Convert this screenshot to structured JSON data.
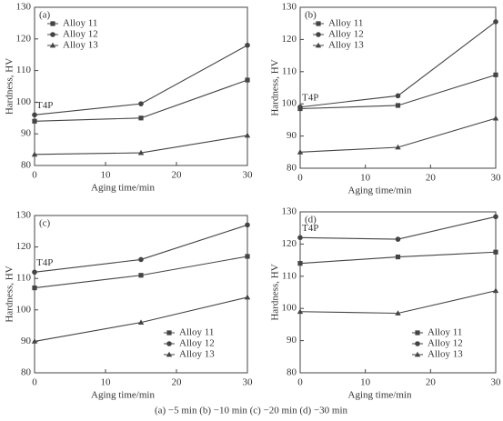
{
  "chart_data": [
    {
      "type": "line",
      "title": "(a)",
      "x_label": "Aging time/min",
      "y_label": "Hardness, HV",
      "annotation": "T4P",
      "x": [
        0,
        15,
        30
      ],
      "xlim": [
        0,
        30
      ],
      "xticks": [
        0,
        10,
        20,
        30
      ],
      "ylim": [
        80,
        130
      ],
      "yticks": [
        80,
        90,
        100,
        110,
        120,
        130
      ],
      "legend": "upper left",
      "series": [
        {
          "name": "Alloy 11",
          "color": "#444",
          "marker": "square",
          "values": [
            94,
            95,
            107
          ]
        },
        {
          "name": "Alloy 12",
          "color": "#444",
          "marker": "circle",
          "values": [
            96,
            99.5,
            118
          ]
        },
        {
          "name": "Alloy 13",
          "color": "#444",
          "marker": "triangle",
          "values": [
            83.5,
            84,
            89.5
          ]
        }
      ]
    },
    {
      "type": "line",
      "title": "(b)",
      "x_label": "Aging time/min",
      "y_label": "Hardness, HV",
      "annotation": "T4P",
      "x": [
        0,
        15,
        30
      ],
      "xlim": [
        0,
        30
      ],
      "xticks": [
        0,
        10,
        20,
        30
      ],
      "ylim": [
        80,
        130
      ],
      "yticks": [
        80,
        90,
        100,
        110,
        120,
        130
      ],
      "legend": "upper left",
      "series": [
        {
          "name": "Alloy 11",
          "color": "#444",
          "marker": "square",
          "values": [
            98.5,
            99.5,
            109
          ]
        },
        {
          "name": "Alloy 12",
          "color": "#444",
          "marker": "circle",
          "values": [
            99,
            102.5,
            125.5
          ]
        },
        {
          "name": "Alloy 13",
          "color": "#444",
          "marker": "triangle",
          "values": [
            85,
            86.5,
            95.5
          ]
        }
      ]
    },
    {
      "type": "line",
      "title": "(c)",
      "x_label": "Aging time/min",
      "y_label": "Hardness, HV",
      "annotation": "T4P",
      "x": [
        0,
        15,
        30
      ],
      "xlim": [
        0,
        30
      ],
      "xticks": [
        0,
        10,
        20,
        30
      ],
      "ylim": [
        80,
        130
      ],
      "yticks": [
        80,
        90,
        100,
        110,
        120,
        130
      ],
      "legend": "lower right",
      "series": [
        {
          "name": "Alloy 11",
          "color": "#444",
          "marker": "square",
          "values": [
            107,
            111,
            117
          ]
        },
        {
          "name": "Alloy 12",
          "color": "#444",
          "marker": "circle",
          "values": [
            112,
            116,
            127
          ]
        },
        {
          "name": "Alloy 13",
          "color": "#444",
          "marker": "triangle",
          "values": [
            90,
            96,
            104
          ]
        }
      ]
    },
    {
      "type": "line",
      "title": "(d)",
      "x_label": "Aging time/min",
      "y_label": "Hardness, HV",
      "annotation": "T4P",
      "x": [
        0,
        15,
        30
      ],
      "xlim": [
        0,
        30
      ],
      "xticks": [
        0,
        10,
        20,
        30
      ],
      "ylim": [
        80,
        130
      ],
      "yticks": [
        80,
        90,
        100,
        110,
        120,
        130
      ],
      "legend": "lower right",
      "series": [
        {
          "name": "Alloy 11",
          "color": "#444",
          "marker": "square",
          "values": [
            114,
            116,
            117.5
          ]
        },
        {
          "name": "Alloy 12",
          "color": "#444",
          "marker": "circle",
          "values": [
            122,
            121.5,
            128.5
          ]
        },
        {
          "name": "Alloy 13",
          "color": "#444",
          "marker": "triangle",
          "values": [
            99,
            98.5,
            105.5
          ]
        }
      ]
    }
  ],
  "caption": "(a) −5 min  (b) −10 min  (c) −20 min  (d) −30 min"
}
